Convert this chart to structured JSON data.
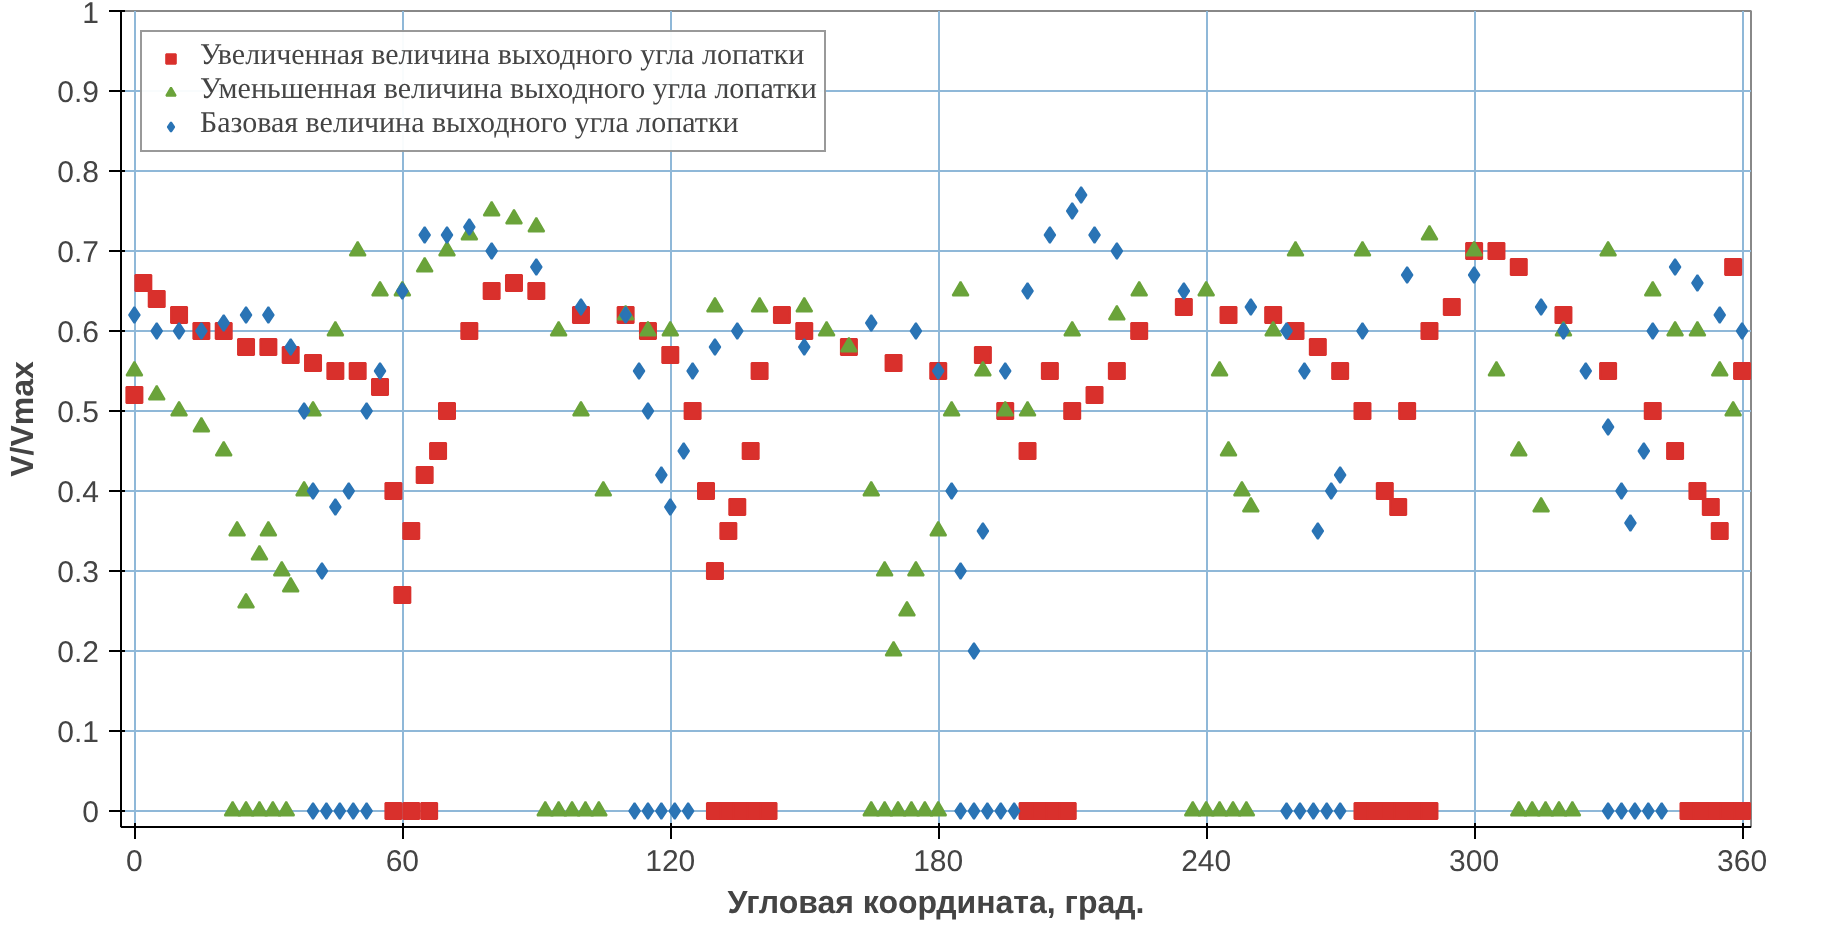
{
  "chart_data": {
    "type": "scatter",
    "xlabel": "Угловая координата, град.",
    "ylabel": "V/Vmax",
    "xlim": [
      -3,
      362
    ],
    "ylim": [
      -0.02,
      1
    ],
    "xticks": [
      0,
      60,
      120,
      180,
      240,
      300,
      360
    ],
    "yticks": [
      0,
      0.1,
      0.2,
      0.3,
      0.4,
      0.5,
      0.6,
      0.7,
      0.8,
      0.9,
      1
    ],
    "grid": true,
    "legend": "top left",
    "series": [
      {
        "name": "Увеличенная величина выходного угла лопатки",
        "color": "#d9302c",
        "marker": "square",
        "x": [
          0,
          2,
          5,
          10,
          15,
          20,
          25,
          30,
          35,
          40,
          45,
          50,
          55,
          58,
          60,
          62,
          65,
          68,
          70,
          75,
          80,
          85,
          90,
          100,
          110,
          115,
          120,
          125,
          128,
          130,
          133,
          135,
          138,
          140,
          145,
          150,
          160,
          170,
          180,
          190,
          195,
          200,
          205,
          210,
          215,
          220,
          225,
          235,
          245,
          255,
          260,
          265,
          270,
          275,
          280,
          283,
          285,
          290,
          295,
          300,
          305,
          310,
          320,
          330,
          340,
          345,
          350,
          353,
          355,
          358,
          360,
          58,
          62,
          66,
          130,
          133,
          136,
          139,
          142,
          200,
          203,
          206,
          209,
          275,
          278,
          281,
          284,
          287,
          290,
          348,
          351,
          354,
          357,
          360
        ],
        "values": [
          0.52,
          0.66,
          0.64,
          0.62,
          0.6,
          0.6,
          0.58,
          0.58,
          0.57,
          0.56,
          0.55,
          0.55,
          0.53,
          0.4,
          0.27,
          0.35,
          0.42,
          0.45,
          0.5,
          0.6,
          0.65,
          0.66,
          0.65,
          0.62,
          0.62,
          0.6,
          0.57,
          0.5,
          0.4,
          0.3,
          0.35,
          0.38,
          0.45,
          0.55,
          0.62,
          0.6,
          0.58,
          0.56,
          0.55,
          0.57,
          0.5,
          0.45,
          0.55,
          0.5,
          0.52,
          0.55,
          0.6,
          0.63,
          0.62,
          0.62,
          0.6,
          0.58,
          0.55,
          0.5,
          0.4,
          0.38,
          0.5,
          0.6,
          0.63,
          0.7,
          0.7,
          0.68,
          0.62,
          0.55,
          0.5,
          0.45,
          0.4,
          0.38,
          0.35,
          0.68,
          0.55,
          0,
          0,
          0,
          0,
          0,
          0,
          0,
          0,
          0,
          0,
          0,
          0,
          0,
          0,
          0,
          0,
          0,
          0,
          0,
          0,
          0,
          0,
          0
        ]
      },
      {
        "name": "Уменьшенная величина выходного угла лопатки",
        "color": "#6aa33a",
        "marker": "triangle",
        "x": [
          0,
          5,
          10,
          15,
          20,
          23,
          25,
          28,
          30,
          33,
          35,
          38,
          40,
          45,
          50,
          55,
          60,
          65,
          70,
          75,
          80,
          85,
          90,
          95,
          100,
          105,
          110,
          115,
          120,
          130,
          140,
          150,
          155,
          160,
          165,
          168,
          170,
          173,
          175,
          180,
          183,
          185,
          190,
          195,
          200,
          210,
          220,
          225,
          240,
          243,
          245,
          248,
          250,
          255,
          260,
          275,
          290,
          300,
          305,
          310,
          315,
          320,
          330,
          340,
          345,
          350,
          355,
          358,
          22,
          25,
          28,
          31,
          34,
          92,
          95,
          98,
          101,
          104,
          165,
          168,
          171,
          174,
          177,
          180,
          237,
          240,
          243,
          246,
          249,
          310,
          313,
          316,
          319,
          322
        ],
        "values": [
          0.55,
          0.52,
          0.5,
          0.48,
          0.45,
          0.35,
          0.26,
          0.32,
          0.35,
          0.3,
          0.28,
          0.4,
          0.5,
          0.6,
          0.7,
          0.65,
          0.65,
          0.68,
          0.7,
          0.72,
          0.75,
          0.74,
          0.73,
          0.6,
          0.5,
          0.4,
          0.62,
          0.6,
          0.6,
          0.63,
          0.63,
          0.63,
          0.6,
          0.58,
          0.4,
          0.3,
          0.2,
          0.25,
          0.3,
          0.35,
          0.5,
          0.65,
          0.55,
          0.5,
          0.5,
          0.6,
          0.62,
          0.65,
          0.65,
          0.55,
          0.45,
          0.4,
          0.38,
          0.6,
          0.7,
          0.7,
          0.72,
          0.7,
          0.55,
          0.45,
          0.38,
          0.6,
          0.7,
          0.65,
          0.6,
          0.6,
          0.55,
          0.5,
          0,
          0,
          0,
          0,
          0,
          0,
          0,
          0,
          0,
          0,
          0,
          0,
          0,
          0,
          0,
          0,
          0,
          0,
          0,
          0,
          0,
          0,
          0,
          0,
          0,
          0
        ]
      },
      {
        "name": "Базовая величина выходного угла лопатки",
        "color": "#2a74b5",
        "marker": "diamond",
        "x": [
          0,
          5,
          10,
          15,
          20,
          25,
          30,
          35,
          38,
          40,
          42,
          45,
          48,
          52,
          55,
          60,
          65,
          70,
          75,
          80,
          90,
          100,
          110,
          113,
          115,
          118,
          120,
          123,
          125,
          130,
          135,
          150,
          165,
          175,
          180,
          183,
          185,
          188,
          190,
          195,
          200,
          205,
          210,
          212,
          215,
          220,
          235,
          250,
          258,
          262,
          265,
          268,
          270,
          275,
          285,
          300,
          315,
          320,
          325,
          330,
          333,
          335,
          338,
          340,
          345,
          350,
          355,
          360,
          40,
          43,
          46,
          49,
          52,
          112,
          115,
          118,
          121,
          124,
          185,
          188,
          191,
          194,
          197,
          258,
          261,
          264,
          267,
          270,
          330,
          333,
          336,
          339,
          342
        ],
        "values": [
          0.62,
          0.6,
          0.6,
          0.6,
          0.61,
          0.62,
          0.62,
          0.58,
          0.5,
          0.4,
          0.3,
          0.38,
          0.4,
          0.5,
          0.55,
          0.65,
          0.72,
          0.72,
          0.73,
          0.7,
          0.68,
          0.63,
          0.62,
          0.55,
          0.5,
          0.42,
          0.38,
          0.45,
          0.55,
          0.58,
          0.6,
          0.58,
          0.61,
          0.6,
          0.55,
          0.4,
          0.3,
          0.2,
          0.35,
          0.55,
          0.65,
          0.72,
          0.75,
          0.77,
          0.72,
          0.7,
          0.65,
          0.63,
          0.6,
          0.55,
          0.35,
          0.4,
          0.42,
          0.6,
          0.67,
          0.67,
          0.63,
          0.6,
          0.55,
          0.48,
          0.4,
          0.36,
          0.45,
          0.6,
          0.68,
          0.66,
          0.62,
          0.6,
          0,
          0,
          0,
          0,
          0,
          0,
          0,
          0,
          0,
          0,
          0,
          0,
          0,
          0,
          0,
          0,
          0,
          0,
          0,
          0,
          0,
          0,
          0,
          0,
          0
        ]
      }
    ]
  }
}
